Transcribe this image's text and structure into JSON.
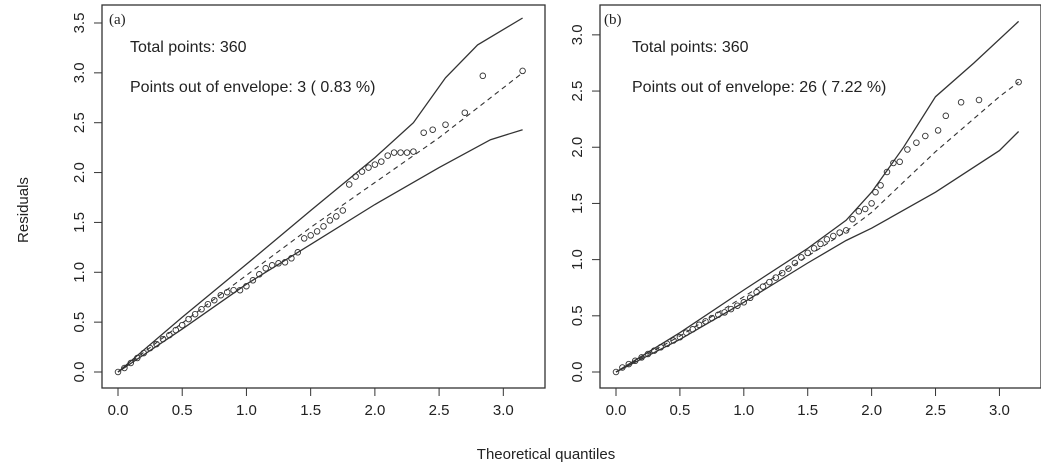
{
  "figure": {
    "ylabel": "Residuals",
    "xlabel": "Theoretical quantiles"
  },
  "chart_data": [
    {
      "type": "scatter",
      "panel_label": "(a)",
      "annotations": [
        "Total points: 360",
        "Points out of envelope: 3 ( 0.83 %)"
      ],
      "xlim": [
        0,
        3.2
      ],
      "ylim": [
        0,
        3.55
      ],
      "xticks": [
        0.0,
        0.5,
        1.0,
        1.5,
        2.0,
        2.5,
        3.0
      ],
      "yticks": [
        0.0,
        0.5,
        1.0,
        1.5,
        2.0,
        2.5,
        3.0,
        3.5
      ],
      "xtick_labels": [
        "0.0",
        "0.5",
        "1.0",
        "1.5",
        "2.0",
        "2.5",
        "3.0"
      ],
      "ytick_labels": [
        "0.0",
        "0.5",
        "1.0",
        "1.5",
        "2.0",
        "2.5",
        "3.0",
        "3.5"
      ],
      "grid": false,
      "envelope_lower": [
        [
          0.0,
          0.0
        ],
        [
          0.5,
          0.43
        ],
        [
          1.0,
          0.88
        ],
        [
          1.5,
          1.28
        ],
        [
          2.0,
          1.68
        ],
        [
          2.5,
          2.05
        ],
        [
          2.9,
          2.33
        ],
        [
          3.15,
          2.43
        ]
      ],
      "envelope_upper": [
        [
          0.0,
          0.0
        ],
        [
          0.5,
          0.55
        ],
        [
          1.0,
          1.08
        ],
        [
          1.5,
          1.62
        ],
        [
          2.0,
          2.15
        ],
        [
          2.3,
          2.5
        ],
        [
          2.55,
          2.95
        ],
        [
          2.8,
          3.28
        ],
        [
          3.15,
          3.55
        ]
      ],
      "median": [
        [
          0.0,
          0.0
        ],
        [
          0.5,
          0.49
        ],
        [
          1.0,
          0.97
        ],
        [
          1.5,
          1.45
        ],
        [
          2.0,
          1.9
        ],
        [
          2.5,
          2.35
        ],
        [
          2.9,
          2.75
        ],
        [
          3.15,
          3.0
        ]
      ],
      "points": [
        [
          0.0,
          0.0
        ],
        [
          0.05,
          0.04
        ],
        [
          0.1,
          0.09
        ],
        [
          0.15,
          0.14
        ],
        [
          0.2,
          0.19
        ],
        [
          0.25,
          0.24
        ],
        [
          0.3,
          0.28
        ],
        [
          0.35,
          0.33
        ],
        [
          0.4,
          0.37
        ],
        [
          0.45,
          0.42
        ],
        [
          0.5,
          0.47
        ],
        [
          0.55,
          0.53
        ],
        [
          0.6,
          0.58
        ],
        [
          0.65,
          0.63
        ],
        [
          0.7,
          0.68
        ],
        [
          0.75,
          0.72
        ],
        [
          0.8,
          0.77
        ],
        [
          0.85,
          0.8
        ],
        [
          0.9,
          0.82
        ],
        [
          0.95,
          0.82
        ],
        [
          1.0,
          0.86
        ],
        [
          1.05,
          0.92
        ],
        [
          1.1,
          0.98
        ],
        [
          1.15,
          1.04
        ],
        [
          1.2,
          1.07
        ],
        [
          1.25,
          1.09
        ],
        [
          1.3,
          1.1
        ],
        [
          1.35,
          1.14
        ],
        [
          1.4,
          1.2
        ],
        [
          1.45,
          1.34
        ],
        [
          1.5,
          1.37
        ],
        [
          1.55,
          1.41
        ],
        [
          1.6,
          1.46
        ],
        [
          1.65,
          1.52
        ],
        [
          1.7,
          1.56
        ],
        [
          1.75,
          1.62
        ],
        [
          1.8,
          1.88
        ],
        [
          1.85,
          1.96
        ],
        [
          1.9,
          2.01
        ],
        [
          1.95,
          2.05
        ],
        [
          2.0,
          2.08
        ],
        [
          2.05,
          2.11
        ],
        [
          2.1,
          2.17
        ],
        [
          2.15,
          2.2
        ],
        [
          2.2,
          2.2
        ],
        [
          2.25,
          2.2
        ],
        [
          2.3,
          2.21
        ],
        [
          2.38,
          2.4
        ],
        [
          2.45,
          2.43
        ],
        [
          2.55,
          2.48
        ],
        [
          2.7,
          2.6
        ],
        [
          2.84,
          2.97
        ],
        [
          3.15,
          3.02
        ]
      ]
    },
    {
      "type": "scatter",
      "panel_label": "(b)",
      "annotations": [
        "Total points: 360",
        "Points out of envelope: 26 ( 7.22 %)"
      ],
      "xlim": [
        0,
        3.2
      ],
      "ylim": [
        0,
        3.15
      ],
      "xticks": [
        0.0,
        0.5,
        1.0,
        1.5,
        2.0,
        2.5,
        3.0
      ],
      "yticks": [
        0.0,
        0.5,
        1.0,
        1.5,
        2.0,
        2.5,
        3.0
      ],
      "xtick_labels": [
        "0.0",
        "0.5",
        "1.0",
        "1.5",
        "2.0",
        "2.5",
        "3.0"
      ],
      "ytick_labels": [
        "0.0",
        "0.5",
        "1.0",
        "1.5",
        "2.0",
        "2.5",
        "3.0"
      ],
      "grid": false,
      "envelope_lower": [
        [
          0.0,
          0.0
        ],
        [
          0.5,
          0.29
        ],
        [
          1.0,
          0.62
        ],
        [
          1.5,
          0.97
        ],
        [
          1.8,
          1.17
        ],
        [
          2.0,
          1.28
        ],
        [
          2.5,
          1.6
        ],
        [
          3.0,
          1.97
        ],
        [
          3.15,
          2.14
        ]
      ],
      "envelope_upper": [
        [
          0.0,
          0.0
        ],
        [
          0.5,
          0.35
        ],
        [
          1.0,
          0.73
        ],
        [
          1.5,
          1.1
        ],
        [
          1.8,
          1.35
        ],
        [
          2.0,
          1.6
        ],
        [
          2.25,
          2.0
        ],
        [
          2.5,
          2.45
        ],
        [
          2.8,
          2.75
        ],
        [
          3.15,
          3.12
        ]
      ],
      "median": [
        [
          0.0,
          0.0
        ],
        [
          0.5,
          0.32
        ],
        [
          1.0,
          0.67
        ],
        [
          1.5,
          1.03
        ],
        [
          1.8,
          1.25
        ],
        [
          2.0,
          1.42
        ],
        [
          2.5,
          1.96
        ],
        [
          3.0,
          2.45
        ],
        [
          3.15,
          2.58
        ]
      ],
      "points": [
        [
          0.0,
          0.0
        ],
        [
          0.05,
          0.04
        ],
        [
          0.1,
          0.07
        ],
        [
          0.15,
          0.1
        ],
        [
          0.2,
          0.13
        ],
        [
          0.25,
          0.16
        ],
        [
          0.3,
          0.19
        ],
        [
          0.35,
          0.22
        ],
        [
          0.4,
          0.25
        ],
        [
          0.45,
          0.28
        ],
        [
          0.5,
          0.31
        ],
        [
          0.55,
          0.35
        ],
        [
          0.6,
          0.38
        ],
        [
          0.65,
          0.42
        ],
        [
          0.7,
          0.45
        ],
        [
          0.75,
          0.48
        ],
        [
          0.8,
          0.51
        ],
        [
          0.85,
          0.53
        ],
        [
          0.9,
          0.56
        ],
        [
          0.95,
          0.59
        ],
        [
          1.0,
          0.62
        ],
        [
          1.05,
          0.66
        ],
        [
          1.1,
          0.71
        ],
        [
          1.15,
          0.76
        ],
        [
          1.2,
          0.8
        ],
        [
          1.25,
          0.84
        ],
        [
          1.3,
          0.88
        ],
        [
          1.35,
          0.92
        ],
        [
          1.4,
          0.97
        ],
        [
          1.45,
          1.02
        ],
        [
          1.5,
          1.06
        ],
        [
          1.55,
          1.1
        ],
        [
          1.6,
          1.14
        ],
        [
          1.65,
          1.18
        ],
        [
          1.7,
          1.21
        ],
        [
          1.75,
          1.24
        ],
        [
          1.8,
          1.26
        ],
        [
          1.85,
          1.36
        ],
        [
          1.9,
          1.43
        ],
        [
          1.95,
          1.45
        ],
        [
          2.0,
          1.5
        ],
        [
          2.03,
          1.6
        ],
        [
          2.07,
          1.66
        ],
        [
          2.12,
          1.78
        ],
        [
          2.17,
          1.86
        ],
        [
          2.22,
          1.87
        ],
        [
          2.28,
          1.98
        ],
        [
          2.35,
          2.04
        ],
        [
          2.42,
          2.1
        ],
        [
          2.52,
          2.15
        ],
        [
          2.58,
          2.28
        ],
        [
          2.7,
          2.4
        ],
        [
          2.84,
          2.42
        ],
        [
          3.15,
          2.58
        ]
      ]
    }
  ]
}
